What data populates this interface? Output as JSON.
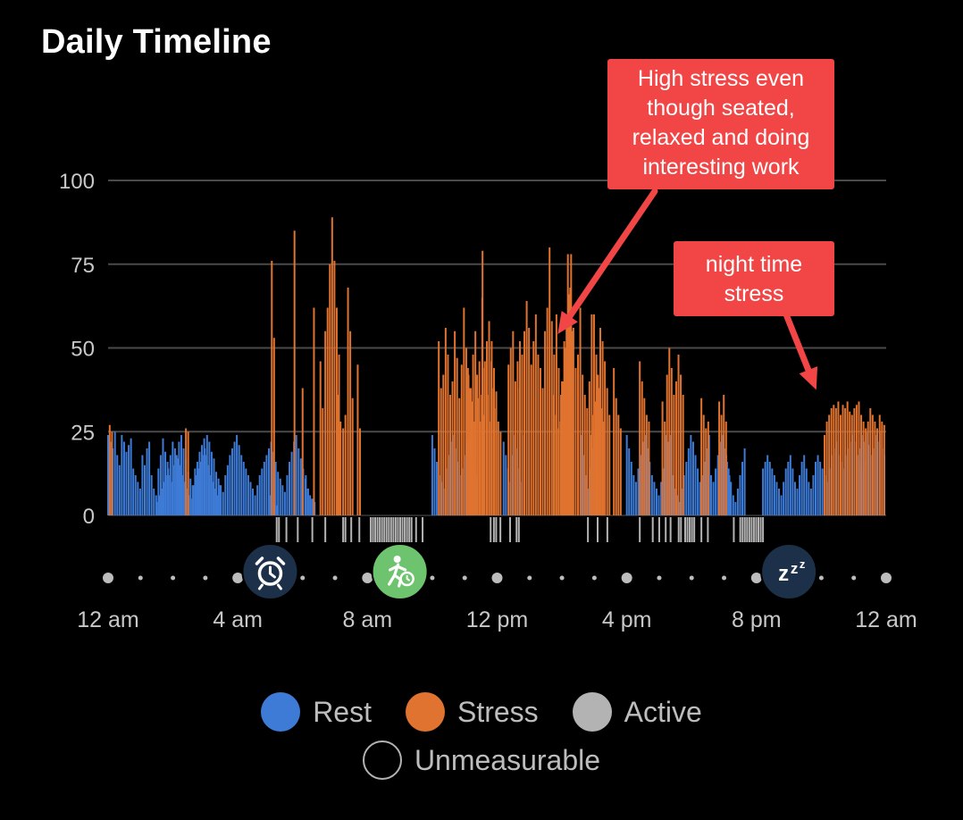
{
  "title": "Daily Timeline",
  "colors": {
    "rest": "#3d7bd6",
    "stress": "#e0732f",
    "active": "#b3b3b3",
    "grid": "#4a4a4a",
    "axis": "#c8c8c8",
    "callout": "#f24545"
  },
  "legend": [
    {
      "label": "Rest",
      "color": "#3d7bd6",
      "filled": true
    },
    {
      "label": "Stress",
      "color": "#e0732f",
      "filled": true
    },
    {
      "label": "Active",
      "color": "#b3b3b3",
      "filled": true
    },
    {
      "label": "Unmeasurable",
      "color": "#b3b3b3",
      "filled": false
    }
  ],
  "callouts": [
    {
      "text": "High stress even though seated, relaxed and doing interesting work",
      "target_hour": 13.4,
      "target_value": 56
    },
    {
      "text": "night time stress",
      "target_hour": 21.9,
      "target_value": 38
    }
  ],
  "event_icons": [
    {
      "name": "alarm-clock-icon",
      "hour": 5.0,
      "bg": "#1d3049"
    },
    {
      "name": "running-timer-icon",
      "hour": 9.0,
      "bg": "#6ec46e"
    },
    {
      "name": "sleep-zzz-icon",
      "hour": 21.0,
      "bg": "#1d3049"
    }
  ],
  "sleep_label": "zzz",
  "chart_data": {
    "type": "bar",
    "x_unit": "hour of day",
    "xlim": [
      0,
      24
    ],
    "ylim": [
      0,
      100
    ],
    "yticks": [
      0,
      25,
      50,
      75,
      100
    ],
    "xticks": [
      {
        "hour": 0,
        "label": "12 am"
      },
      {
        "hour": 4,
        "label": "4 am"
      },
      {
        "hour": 8,
        "label": "8 am"
      },
      {
        "hour": 12,
        "label": "12 pm"
      },
      {
        "hour": 16,
        "label": "4 pm"
      },
      {
        "hour": 20,
        "label": "8 pm"
      },
      {
        "hour": 24,
        "label": "12 am"
      }
    ],
    "series": [
      {
        "name": "Rest",
        "color": "#3d7bd6",
        "segments": [
          {
            "start": 0.0,
            "values": [
              24,
              22,
              20,
              25,
              18,
              15,
              24,
              22,
              19,
              21,
              23,
              14,
              12,
              10,
              8,
              18,
              15,
              20,
              22,
              12,
              8,
              6,
              14,
              18,
              23,
              19,
              16,
              12,
              10,
              15,
              18,
              22,
              24,
              20,
              17,
              13,
              11,
              9,
              14,
              16,
              19,
              21,
              23,
              18,
              15,
              12,
              10,
              8,
              6,
              9
            ]
          },
          {
            "start": 1.5,
            "values": [
              4,
              6,
              8,
              10,
              12,
              14,
              18,
              22,
              20,
              17,
              15,
              12,
              10,
              8,
              6,
              5,
              9,
              12,
              14,
              16,
              18,
              20,
              24,
              22,
              19,
              17,
              13,
              11,
              9,
              7,
              12,
              15,
              18,
              20,
              22,
              24,
              21,
              18,
              16,
              14,
              12,
              10,
              8,
              6,
              9,
              12,
              14,
              16,
              18,
              20,
              22,
              19,
              16,
              13,
              11,
              9,
              7,
              12,
              16,
              19,
              22,
              24,
              20,
              17,
              14,
              11,
              8,
              6,
              5,
              4
            ]
          },
          {
            "start": 5.0,
            "values": [
              6,
              4,
              3,
              3
            ]
          },
          {
            "start": 6.1,
            "values": [
              12,
              8,
              5,
              4
            ]
          },
          {
            "start": 10.0,
            "values": [
              24,
              20,
              16,
              12,
              10,
              8,
              14,
              18,
              22,
              24,
              20,
              16,
              12,
              14,
              18,
              22,
              24,
              20,
              16,
              12
            ]
          },
          {
            "start": 12.2,
            "values": [
              22,
              18,
              14,
              10,
              18,
              24,
              20,
              14,
              10,
              24
            ]
          },
          {
            "start": 14.6,
            "values": [
              24,
              18,
              12,
              8,
              14,
              20,
              24
            ]
          },
          {
            "start": 16.0,
            "values": [
              24,
              20,
              16,
              12,
              10,
              14,
              18,
              22,
              24,
              20,
              16,
              12,
              10,
              8,
              6,
              10,
              14,
              18,
              22,
              24
            ]
          },
          {
            "start": 17.2,
            "values": [
              24,
              20,
              16,
              12,
              8,
              6,
              4,
              8,
              12,
              16,
              20,
              24,
              22,
              18,
              14,
              10,
              12,
              16,
              20,
              24
            ]
          },
          {
            "start": 18.6,
            "values": [
              12,
              10,
              14,
              18,
              22,
              24,
              20,
              16,
              12
            ]
          },
          {
            "start": 19.0,
            "values": [
              20,
              18,
              14,
              10,
              6,
              4,
              8,
              12,
              16,
              20
            ]
          },
          {
            "start": 20.2,
            "values": [
              14,
              16,
              18,
              16,
              14,
              12,
              10,
              8,
              6,
              10,
              14,
              16,
              18,
              14,
              10,
              8,
              12,
              16,
              18,
              14,
              10,
              8,
              12,
              16,
              18,
              16,
              14,
              12,
              10,
              14,
              18,
              20,
              22,
              18,
              16,
              14,
              18,
              20,
              22,
              24,
              22,
              18,
              16,
              14,
              12,
              16,
              20
            ]
          },
          {
            "start": 23.1,
            "values": [
              18,
              20,
              24,
              22,
              25,
              21,
              18,
              20,
              24,
              22,
              25,
              20,
              18,
              16,
              22,
              24,
              20
            ]
          }
        ]
      },
      {
        "name": "Stress",
        "color": "#e0732f",
        "segments": [
          {
            "start": 0.05,
            "values": [
              27,
              25
            ]
          },
          {
            "start": 2.4,
            "values": [
              26,
              25
            ]
          },
          {
            "start": 5.05,
            "values": [
              76,
              53
            ]
          },
          {
            "start": 5.75,
            "values": [
              85
            ]
          },
          {
            "start": 6.35,
            "values": [
              62
            ]
          },
          {
            "start": 6.0,
            "values": [
              38
            ]
          },
          {
            "start": 6.55,
            "values": [
              46,
              32
            ]
          },
          {
            "start": 6.7,
            "values": [
              55,
              62,
              75,
              89,
              76,
              62,
              48
            ]
          },
          {
            "start": 7.1,
            "values": [
              36,
              28
            ]
          },
          {
            "start": 7.25,
            "values": [
              26,
              30
            ]
          },
          {
            "start": 7.4,
            "values": [
              68,
              55,
              35
            ]
          },
          {
            "start": 7.7,
            "values": [
              45,
              26
            ]
          },
          {
            "start": 10.2,
            "values": [
              52,
              38,
              42,
              56,
              48,
              36,
              40,
              55,
              47,
              35,
              45,
              62,
              50,
              42,
              38,
              48,
              55,
              35,
              28,
              65,
              44,
              52,
              58,
              46,
              38,
              32,
              28,
              25
            ]
          },
          {
            "start": 11.1,
            "values": [
              44,
              38,
              34,
              28,
              42,
              46,
              36,
              30
            ]
          },
          {
            "start": 11.55,
            "values": [
              79,
              46,
              36,
              28,
              52,
              44,
              37
            ]
          },
          {
            "start": 12.35,
            "values": [
              45,
              50,
              55,
              40,
              46,
              52
            ]
          },
          {
            "start": 12.7,
            "values": [
              38,
              48,
              55,
              64,
              56,
              45,
              52,
              60,
              48,
              44,
              38,
              55,
              62,
              80,
              58,
              48,
              60,
              44,
              36,
              40,
              50,
              78,
              68,
              55
            ]
          },
          {
            "start": 13.75,
            "values": [
              36,
              30,
              26,
              28
            ]
          },
          {
            "start": 14.0,
            "values": [
              40,
              52,
              60,
              66,
              78,
              56,
              44,
              48,
              62,
              42,
              36,
              32,
              40,
              60,
              60,
              48,
              38,
              32,
              28
            ]
          },
          {
            "start": 14.9,
            "values": [
              24,
              30,
              34,
              42,
              56,
              52,
              46,
              38,
              30
            ]
          },
          {
            "start": 15.6,
            "values": [
              44,
              35,
              30,
              26
            ]
          },
          {
            "start": 16.4,
            "values": [
              46,
              40,
              35,
              30,
              28
            ]
          },
          {
            "start": 17.1,
            "values": [
              34,
              28,
              42,
              50,
              44,
              36,
              40,
              48,
              42,
              36
            ]
          },
          {
            "start": 18.3,
            "values": [
              35,
              30,
              26,
              28
            ]
          },
          {
            "start": 18.85,
            "values": [
              34,
              30,
              36,
              28
            ]
          },
          {
            "start": 22.1,
            "values": [
              24,
              28,
              30,
              32,
              33,
              32,
              34,
              30,
              33,
              32,
              34,
              31,
              30,
              32,
              33,
              34,
              30,
              28,
              26,
              28,
              32,
              30,
              28,
              26
            ]
          },
          {
            "start": 23.8,
            "values": [
              30,
              28,
              27,
              29
            ]
          }
        ]
      }
    ],
    "active_ranges": [
      [
        5.2,
        5.3
      ],
      [
        5.5,
        5.55
      ],
      [
        5.85,
        5.9
      ],
      [
        6.3,
        6.35
      ],
      [
        6.7,
        6.75
      ],
      [
        7.25,
        7.35
      ],
      [
        7.5,
        7.55
      ],
      [
        7.75,
        7.8
      ],
      [
        8.1,
        9.4
      ],
      [
        9.5,
        9.55
      ],
      [
        9.7,
        9.75
      ],
      [
        11.8,
        11.85
      ],
      [
        11.9,
        12.0
      ],
      [
        12.1,
        12.15
      ],
      [
        12.4,
        12.45
      ],
      [
        12.6,
        12.7
      ],
      [
        14.8,
        14.85
      ],
      [
        15.1,
        15.15
      ],
      [
        15.4,
        15.45
      ],
      [
        16.4,
        16.45
      ],
      [
        16.8,
        16.85
      ],
      [
        17.0,
        17.05
      ],
      [
        17.2,
        17.25
      ],
      [
        17.35,
        17.4
      ],
      [
        17.6,
        17.7
      ],
      [
        17.8,
        18.1
      ],
      [
        18.3,
        18.35
      ],
      [
        18.5,
        18.55
      ],
      [
        19.3,
        19.35
      ],
      [
        19.5,
        20.2
      ]
    ],
    "timeline_dots": [
      0,
      1,
      2,
      3,
      4,
      5,
      6,
      7,
      8,
      9,
      10,
      11,
      12,
      13,
      14,
      15,
      16,
      17,
      18,
      19,
      20,
      21,
      22,
      23,
      24
    ],
    "timeline_major": [
      0,
      4,
      8,
      12,
      16,
      20,
      24
    ]
  }
}
